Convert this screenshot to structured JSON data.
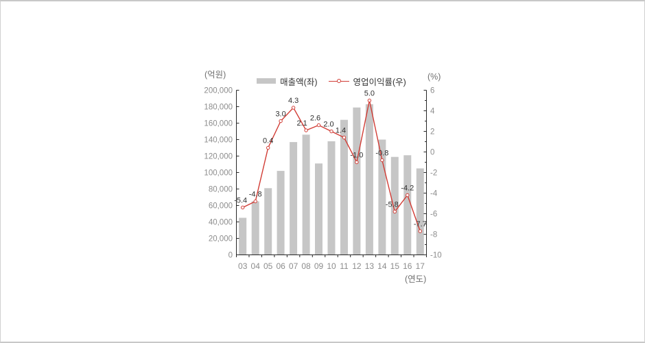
{
  "chart_data": {
    "type": "bar+line combo",
    "title": "",
    "categories": [
      "03",
      "04",
      "05",
      "06",
      "07",
      "08",
      "09",
      "10",
      "11",
      "12",
      "13",
      "14",
      "15",
      "16",
      "17"
    ],
    "series": [
      {
        "name": "매출액(좌)",
        "type": "bar",
        "axis": "left",
        "color": "#c6c6c6",
        "values": [
          45000,
          65000,
          81000,
          102000,
          137000,
          146000,
          111000,
          138000,
          164000,
          179000,
          183000,
          140000,
          119000,
          121000,
          105000
        ]
      },
      {
        "name": "영업이익률(우)",
        "type": "line",
        "axis": "right",
        "color": "#d13b34",
        "values": [
          -5.4,
          -4.8,
          0.4,
          3.0,
          4.3,
          2.1,
          2.6,
          2.0,
          1.4,
          -1.0,
          5.0,
          -0.8,
          -5.8,
          -4.2,
          -7.7
        ],
        "point_labels": [
          "-5.4",
          "-4.8",
          "0.4",
          "3.0",
          "4.3",
          "2.1",
          "2.6",
          "2.0",
          "1.4",
          "-1.0",
          "5.0",
          "-0.8",
          "-5.8",
          "-4.2",
          "-7.7"
        ]
      }
    ],
    "left_axis": {
      "title": "(억원)",
      "min": 0,
      "max": 200000,
      "tick_step": 20000,
      "tick_labels": [
        "0",
        "20,000",
        "40,000",
        "60,000",
        "80,000",
        "100,000",
        "120,000",
        "140,000",
        "160,000",
        "180,000",
        "200,000"
      ]
    },
    "right_axis": {
      "title": "(%)",
      "min": -10,
      "max": 6,
      "tick_step": 2,
      "minor_tick_step": 1,
      "tick_labels": [
        "-10",
        "-8",
        "-6",
        "-4",
        "-2",
        "0",
        "2",
        "4",
        "6"
      ]
    },
    "x_axis": {
      "title": "(연도)"
    },
    "legend_position": "top",
    "grid": "off",
    "colors": {
      "bar": "#c6c6c6",
      "line": "#d13b34",
      "data_label": "#2e2e2e",
      "tick_label": "#8c8c8c",
      "axis_line": "#262626",
      "axis_title": "#707070"
    }
  }
}
